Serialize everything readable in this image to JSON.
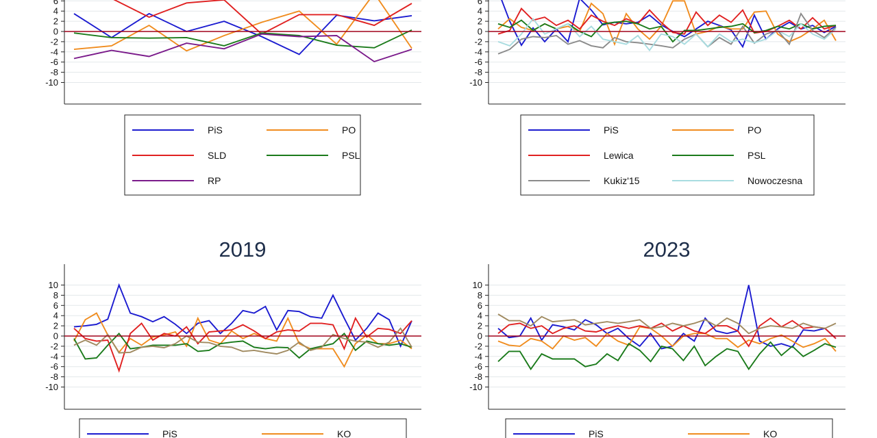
{
  "chart_data": [
    {
      "type": "line",
      "title": "",
      "x_label": "",
      "y_label": "",
      "yticks": [
        6,
        4,
        2,
        0,
        -2,
        -4,
        -6,
        -8,
        -10
      ],
      "ylim": [
        -14,
        6
      ],
      "grid": true,
      "reference_line": {
        "y": 0,
        "color": "#a0001a"
      },
      "legend": {
        "placement": "bottom",
        "columns": 2
      },
      "series": [
        {
          "name": "PiS",
          "color": "#1b1bd0",
          "values": [
            3.5,
            -1.2,
            3.5,
            0,
            2,
            -1,
            -4.5,
            3.2,
            2.1,
            3.1
          ]
        },
        {
          "name": "PO",
          "color": "#f08c1e",
          "values": [
            -3.5,
            -2.8,
            1.2,
            -3.8,
            -0.8,
            1.8,
            4,
            -2.5,
            7.5,
            -3.3
          ]
        },
        {
          "name": "SLD",
          "color": "#e02020",
          "values": [
            8,
            6.5,
            2.8,
            5.6,
            6.2,
            -0.5,
            3.3,
            3.3,
            1.2,
            5.5
          ]
        },
        {
          "name": "PSL",
          "color": "#1a7a1a",
          "values": [
            -0.3,
            -1.2,
            -1.3,
            -1.2,
            -2.8,
            -0.3,
            -0.8,
            -2.7,
            -3.2,
            0.3
          ]
        },
        {
          "name": "RP",
          "color": "#7a1a8a",
          "values": [
            -5.3,
            -3.7,
            -4.9,
            -2.3,
            -3.4,
            -0.5,
            -1.0,
            -0.8,
            -5.9,
            -3.5
          ]
        }
      ]
    },
    {
      "type": "line",
      "title": "",
      "x_label": "",
      "y_label": "",
      "yticks": [
        6,
        4,
        2,
        0,
        -2,
        -4,
        -6,
        -8,
        -10
      ],
      "ylim": [
        -14,
        6
      ],
      "grid": true,
      "reference_line": {
        "y": 0,
        "color": "#a0001a"
      },
      "legend": {
        "placement": "bottom",
        "columns": 2
      },
      "series": [
        {
          "name": "PiS",
          "color": "#1b1bd0",
          "values": [
            8,
            2,
            -2.7,
            0.7,
            -2,
            0.5,
            -2,
            6.5,
            4.2,
            1.3,
            1.8,
            1.5,
            1.8,
            3.2,
            1.3,
            0,
            -1,
            0.5,
            2,
            1.2,
            0.3,
            -3,
            3.2,
            -1.5,
            0.5,
            1.8,
            0.5,
            1.2,
            -0.2,
            1
          ]
        },
        {
          "name": "PO",
          "color": "#f08c1e",
          "values": [
            0.5,
            2.5,
            0.8,
            0.2,
            1.5,
            0.5,
            1,
            0,
            5.5,
            3.5,
            -2.5,
            3.5,
            0.5,
            -1.5,
            1,
            6,
            6,
            -0.5,
            0,
            1,
            0.5,
            0.5,
            3.8,
            4,
            -0.5,
            -2,
            -1,
            0.5,
            2.2,
            -1.8
          ]
        },
        {
          "name": "Lewica",
          "color": "#e02020",
          "values": [
            -0.5,
            0.2,
            4.5,
            2.2,
            2.8,
            1.2,
            2.2,
            0.5,
            3.2,
            2,
            1.2,
            2.5,
            1.5,
            4.2,
            1.8,
            -0.2,
            -0.5,
            3.8,
            1.2,
            3.2,
            1.8,
            4.2,
            -0.3,
            0,
            1,
            2.2,
            0.5,
            2.7,
            0.5,
            1.2
          ]
        },
        {
          "name": "PSL",
          "color": "#1a7a1a",
          "values": [
            1.5,
            0.8,
            2.2,
            0.2,
            1.5,
            0.5,
            1.5,
            0,
            -1,
            1.5,
            1.8,
            2,
            1.5,
            0.5,
            1,
            -2,
            0.2,
            0.2,
            0.5,
            0.8,
            1,
            1.5,
            -0.2,
            0.2,
            1,
            0.5,
            1.5,
            0.5,
            1,
            1.2
          ]
        },
        {
          "name": "Kukiz'15",
          "color": "#8a8a8a",
          "values": [
            -4.4,
            -3.5,
            -1.5,
            -1,
            -1.2,
            -0.8,
            -2.5,
            -1.8,
            -2.8,
            -3.2,
            -1.2,
            -2,
            -2.2,
            -2.5,
            -2.8,
            -3.2,
            -1.5,
            -0.5,
            -3,
            -1.2,
            -2.5,
            1,
            -2.3,
            -0.5,
            0.2,
            -2.5,
            3.5,
            0.2,
            -1.2,
            0.8
          ]
        },
        {
          "name": "Nowoczesna",
          "color": "#a8dce0",
          "values": [
            -2,
            -2.8,
            -0.5,
            2.5,
            -0.5,
            0.5,
            1.5,
            -1,
            1,
            -1.5,
            -2,
            -2.5,
            -0.8,
            -3.7,
            -0.5,
            -1,
            -2.5,
            -0.5,
            -3,
            -0.5,
            -2,
            -1.5,
            -2.2,
            -1.5,
            0.2,
            -1,
            1.5,
            -0.5,
            -1.5,
            0.5
          ]
        }
      ]
    },
    {
      "type": "line",
      "title": "2019",
      "x_label": "",
      "y_label": "",
      "yticks": [
        10,
        8,
        6,
        4,
        2,
        0,
        -2,
        -4,
        -6,
        -8,
        -10
      ],
      "ylim": [
        -14,
        14
      ],
      "grid": true,
      "reference_line": {
        "y": 0,
        "color": "#a0001a"
      },
      "legend": {
        "placement": "bottom",
        "columns": 2
      },
      "series": [
        {
          "name": "PiS",
          "color": "#1b1bd0",
          "values": [
            1.8,
            2,
            2.3,
            3.3,
            10,
            4.5,
            3.8,
            2.8,
            3.8,
            2.3,
            0.5,
            2.5,
            3,
            0.5,
            2.5,
            5,
            4.5,
            5.8,
            1.2,
            5,
            4.8,
            3.8,
            3.5,
            8,
            3.5,
            -0.8,
            1.5,
            4.5,
            3.2,
            -2,
            3
          ]
        },
        {
          "name": "KO",
          "color": "#f08c1e",
          "values": [
            -1,
            3.2,
            4.5,
            0.2,
            -3.2,
            -0.5,
            -1.8,
            -0.2,
            0.2,
            0.8,
            -2,
            3.5,
            -0.8,
            -1.5,
            1,
            -0.5,
            0.5,
            -0.5,
            -1,
            3.5,
            -1.5,
            -2.5,
            -2.5,
            -2.5,
            -6,
            -1.5,
            0.2,
            -1.5,
            -1.5,
            -0.8,
            -2.5
          ]
        },
        {
          "name": "",
          "color": "#e02020",
          "values": [
            1.5,
            -0.5,
            -1,
            -0.8,
            -6.8,
            0.5,
            2.5,
            -0.8,
            0.5,
            0,
            1.8,
            -1.5,
            0.8,
            1,
            1.2,
            2.2,
            1,
            -0.5,
            0.8,
            1.2,
            1,
            2.5,
            2.5,
            2.2,
            -2.5,
            3.5,
            -0.2,
            1.5,
            1.3,
            0.5,
            3
          ]
        },
        {
          "name": "",
          "color": "#1a7a1a",
          "values": [
            -0.5,
            -4.5,
            -4.3,
            -1.8,
            0.5,
            -2.5,
            -2.2,
            -1.8,
            -1.8,
            -1.8,
            -1.5,
            -3,
            -2.8,
            -1.5,
            -1.2,
            -1,
            -2.2,
            -2.5,
            -2.2,
            -2.3,
            -4.3,
            -2.5,
            -2,
            -1.5,
            0.5,
            -2.8,
            -1,
            -1.5,
            -1.8,
            -1.5,
            -2.2
          ]
        },
        {
          "name": "",
          "color": "#a08a60",
          "values": [
            -1.8,
            -0.8,
            -1.8,
            0.3,
            -3.3,
            -3.2,
            -2.2,
            -2,
            -2.3,
            -1.5,
            0,
            -1.2,
            -1.3,
            -2,
            -2.2,
            -3,
            -2.8,
            -3.2,
            -3.5,
            -2.8,
            -1.2,
            -2.8,
            -2.2,
            0.3,
            -0.5,
            -1,
            -1.2,
            -2.2,
            -1.2,
            1.5,
            -2.2
          ]
        }
      ]
    },
    {
      "type": "line",
      "title": "2023",
      "x_label": "",
      "y_label": "",
      "yticks": [
        10,
        8,
        6,
        4,
        2,
        0,
        -2,
        -4,
        -6,
        -8,
        -10
      ],
      "ylim": [
        -14,
        14
      ],
      "grid": true,
      "reference_line": {
        "y": 0,
        "color": "#a0001a"
      },
      "legend": {
        "placement": "bottom",
        "columns": 2
      },
      "series": [
        {
          "name": "PiS",
          "color": "#1b1bd0",
          "values": [
            1.5,
            -0.3,
            0,
            3.5,
            -0.8,
            2.2,
            1.8,
            1.2,
            3.2,
            2.2,
            0.5,
            1.5,
            -0.5,
            -2,
            0.5,
            -2.5,
            -2,
            0.5,
            -1,
            3.5,
            1,
            0.5,
            1,
            10,
            -1,
            -2,
            -1.5,
            -2.2,
            1.2,
            1,
            1.5,
            -0.5
          ]
        },
        {
          "name": "KO",
          "color": "#f08c1e",
          "values": [
            -1,
            -1.8,
            -2,
            -0.5,
            -1,
            -2.5,
            0,
            -0.8,
            -0.3,
            -2,
            0.5,
            -1,
            -1.8,
            1.8,
            1.5,
            0,
            -2,
            0,
            0.5,
            0.5,
            -0.5,
            -0.5,
            -2.2,
            -0.8,
            -1.5,
            -0.5,
            0.2,
            -1,
            -2.2,
            -1.5,
            -0.5,
            -3
          ]
        },
        {
          "name": "",
          "color": "#e02020",
          "values": [
            0.5,
            2.2,
            2.5,
            1.5,
            2,
            0.5,
            1.5,
            2,
            1,
            0.8,
            1.5,
            2,
            1.5,
            2,
            1.5,
            2.5,
            1,
            2,
            1,
            0.5,
            2,
            2,
            1,
            -2,
            2,
            3.5,
            1.8,
            3,
            1.5,
            1.8,
            1.5,
            -0.5
          ]
        },
        {
          "name": "",
          "color": "#1a7a1a",
          "values": [
            -5,
            -3,
            -3,
            -6.5,
            -3.5,
            -4.5,
            -4.5,
            -4.5,
            -6,
            -5.5,
            -3.5,
            -4.8,
            -1.5,
            -2.8,
            -5,
            -2,
            -2.5,
            -4.8,
            -2,
            -5.8,
            -4,
            -2.5,
            -3,
            -6.5,
            -3.5,
            -1.2,
            -3.8,
            -2,
            -4,
            -2.8,
            -1.5,
            -2.2
          ]
        },
        {
          "name": "",
          "color": "#a08a60",
          "values": [
            4.3,
            3,
            3,
            2,
            3.8,
            2.8,
            3,
            3.2,
            2.2,
            2.5,
            2.8,
            2.5,
            2.8,
            3.2,
            1.5,
            1.8,
            2.5,
            2,
            2.5,
            3.2,
            2,
            3.5,
            2.5,
            0.5,
            1.5,
            2,
            1.8,
            1.5,
            2.5,
            1.8,
            1.5,
            2.5
          ]
        }
      ]
    }
  ],
  "panels": [
    {
      "title": "",
      "legend_items": [
        {
          "label": "PiS",
          "color": "#1b1bd0"
        },
        {
          "label": "PO",
          "color": "#f08c1e"
        },
        {
          "label": "SLD",
          "color": "#e02020"
        },
        {
          "label": "PSL",
          "color": "#1a7a1a"
        },
        {
          "label": "RP",
          "color": "#7a1a8a"
        }
      ]
    },
    {
      "title": "",
      "legend_items": [
        {
          "label": "PiS",
          "color": "#1b1bd0"
        },
        {
          "label": "PO",
          "color": "#f08c1e"
        },
        {
          "label": "Lewica",
          "color": "#e02020"
        },
        {
          "label": "PSL",
          "color": "#1a7a1a"
        },
        {
          "label": "Kukiz'15",
          "color": "#8a8a8a"
        },
        {
          "label": "Nowoczesna",
          "color": "#a8dce0"
        }
      ]
    },
    {
      "title": "2019",
      "legend_items": [
        {
          "label": "PiS",
          "color": "#1b1bd0"
        },
        {
          "label": "KO",
          "color": "#f08c1e"
        }
      ]
    },
    {
      "title": "2023",
      "legend_items": [
        {
          "label": "PiS",
          "color": "#1b1bd0"
        },
        {
          "label": "KO",
          "color": "#f08c1e"
        }
      ]
    }
  ]
}
